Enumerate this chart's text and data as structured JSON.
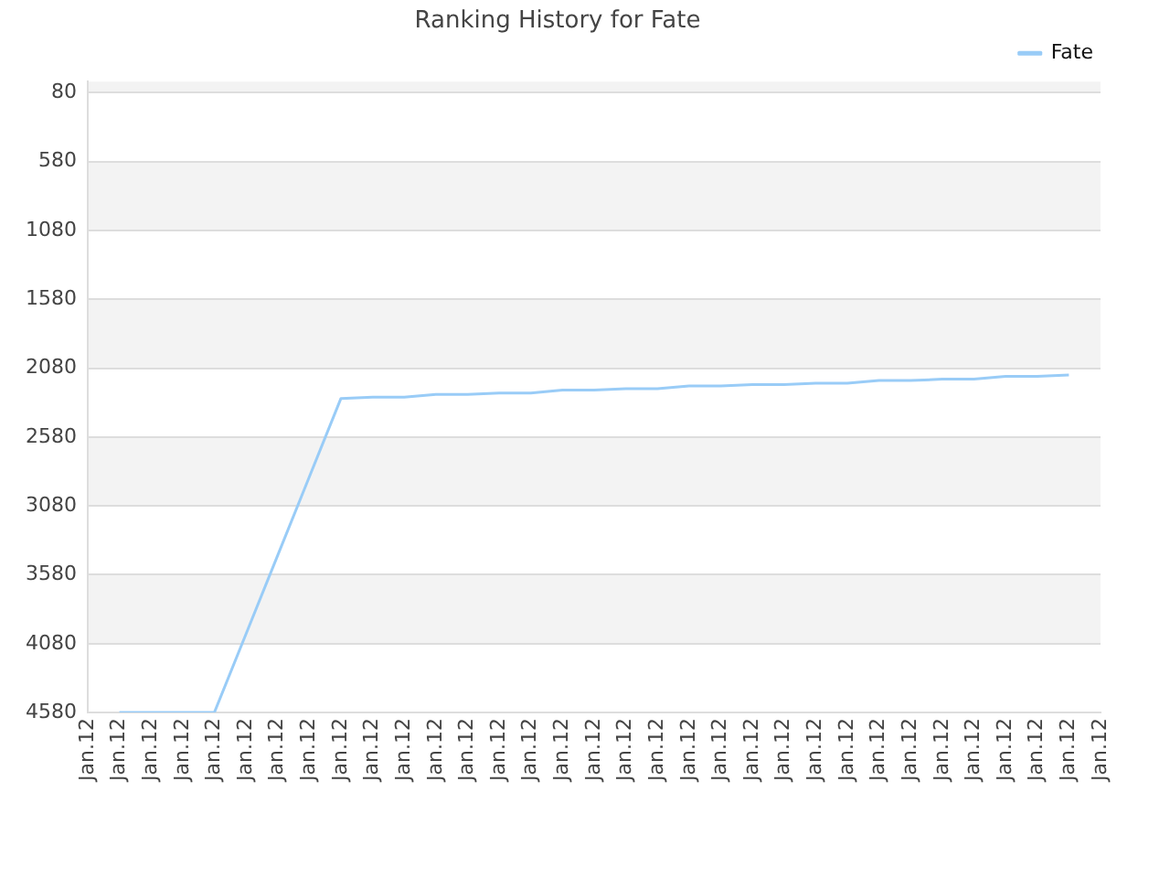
{
  "chart_data": {
    "type": "line",
    "title": "Ranking History for Fate",
    "categories": [
      "Jan.12",
      "Jan.12",
      "Jan.12",
      "Jan.12",
      "Jan.12",
      "Jan.12",
      "Jan.12",
      "Jan.12",
      "Jan.12",
      "Jan.12",
      "Jan.12",
      "Jan.12",
      "Jan.12",
      "Jan.12",
      "Jan.12",
      "Jan.12",
      "Jan.12",
      "Jan.12",
      "Jan.12",
      "Jan.12",
      "Jan.12",
      "Jan.12",
      "Jan.12",
      "Jan.12",
      "Jan.12",
      "Jan.12",
      "Jan.12",
      "Jan.12",
      "Jan.12",
      "Jan.12",
      "Jan.12",
      "Jan.12",
      "Jan.12"
    ],
    "ylim": [
      4580,
      0
    ],
    "yticks": [
      80,
      580,
      1080,
      1580,
      2080,
      2580,
      3080,
      3580,
      4080,
      4580
    ],
    "grid": "y",
    "legend": "top right",
    "marker": "none",
    "line_style": "solid",
    "series": [
      {
        "name": "Fate",
        "color": "#99ccf7",
        "values": [
          null,
          4580,
          4580,
          4580,
          4580,
          4010,
          3440,
          2870,
          2300,
          2290,
          2290,
          2270,
          2270,
          2260,
          2260,
          2240,
          2240,
          2230,
          2230,
          2210,
          2210,
          2200,
          2200,
          2190,
          2190,
          2170,
          2170,
          2160,
          2160,
          2140,
          2140,
          2130,
          null
        ]
      }
    ]
  }
}
